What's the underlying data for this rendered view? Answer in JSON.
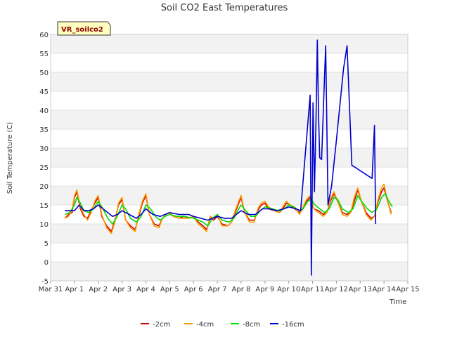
{
  "chart_data": {
    "type": "line",
    "title": "Soil CO2 East Temperatures",
    "xlabel": "Time",
    "ylabel": "Soil Temperature (C)",
    "badge": "VR_soilco2",
    "ylim": [
      -5,
      60
    ],
    "yticks": [
      -5,
      0,
      5,
      10,
      15,
      20,
      25,
      30,
      35,
      40,
      45,
      50,
      55,
      60
    ],
    "xlim": [
      0,
      15
    ],
    "xticks": [
      {
        "v": 0,
        "label": "Mar 31"
      },
      {
        "v": 1,
        "label": "Apr 1"
      },
      {
        "v": 2,
        "label": "Apr 2"
      },
      {
        "v": 3,
        "label": "Apr 3"
      },
      {
        "v": 4,
        "label": "Apr 4"
      },
      {
        "v": 5,
        "label": "Apr 5"
      },
      {
        "v": 6,
        "label": "Apr 6"
      },
      {
        "v": 7,
        "label": "Apr 7"
      },
      {
        "v": 8,
        "label": "Apr 8"
      },
      {
        "v": 9,
        "label": "Apr 9"
      },
      {
        "v": 10,
        "label": "Apr 10"
      },
      {
        "v": 11,
        "label": "Apr 11"
      },
      {
        "v": 12,
        "label": "Apr 12"
      },
      {
        "v": 13,
        "label": "Apr 13"
      },
      {
        "v": 14,
        "label": "Apr 14"
      },
      {
        "v": 15,
        "label": "Apr 15"
      }
    ],
    "grid": "horizontal bands",
    "legend_position": "bottom",
    "series": [
      {
        "name": "-2cm",
        "color": "#cc0000",
        "points": [
          [
            0.6,
            11.5
          ],
          [
            0.75,
            12.5
          ],
          [
            0.9,
            13
          ],
          [
            1.0,
            17
          ],
          [
            1.1,
            18.5
          ],
          [
            1.25,
            14
          ],
          [
            1.4,
            12
          ],
          [
            1.55,
            11.5
          ],
          [
            1.7,
            13.5
          ],
          [
            1.85,
            15.5
          ],
          [
            2.0,
            17
          ],
          [
            2.15,
            12
          ],
          [
            2.35,
            9.5
          ],
          [
            2.55,
            8
          ],
          [
            2.7,
            11
          ],
          [
            2.85,
            15
          ],
          [
            3.0,
            16.5
          ],
          [
            3.15,
            11
          ],
          [
            3.35,
            9.5
          ],
          [
            3.55,
            8.5
          ],
          [
            3.7,
            12
          ],
          [
            3.85,
            15.5
          ],
          [
            4.0,
            17.5
          ],
          [
            4.15,
            12.5
          ],
          [
            4.35,
            10
          ],
          [
            4.55,
            9.5
          ],
          [
            4.7,
            11.5
          ],
          [
            4.85,
            12.5
          ],
          [
            5.0,
            13
          ],
          [
            5.15,
            12
          ],
          [
            5.4,
            11.5
          ],
          [
            5.6,
            12
          ],
          [
            5.8,
            11.5
          ],
          [
            6.0,
            12
          ],
          [
            6.2,
            10.5
          ],
          [
            6.4,
            9.5
          ],
          [
            6.55,
            8.5
          ],
          [
            6.7,
            11.5
          ],
          [
            6.85,
            11
          ],
          [
            7.0,
            12
          ],
          [
            7.2,
            10
          ],
          [
            7.45,
            9.5
          ],
          [
            7.6,
            10.5
          ],
          [
            7.75,
            13
          ],
          [
            7.9,
            15.5
          ],
          [
            8.0,
            17
          ],
          [
            8.15,
            13
          ],
          [
            8.35,
            11
          ],
          [
            8.55,
            11
          ],
          [
            8.7,
            13.5
          ],
          [
            8.85,
            15
          ],
          [
            9.0,
            15.5
          ],
          [
            9.15,
            14
          ],
          [
            9.4,
            13.5
          ],
          [
            9.6,
            13
          ],
          [
            9.75,
            14
          ],
          [
            9.9,
            15.5
          ],
          [
            10.05,
            15
          ],
          [
            10.25,
            14
          ],
          [
            10.45,
            13
          ],
          [
            10.6,
            14
          ],
          [
            10.75,
            16
          ],
          [
            10.9,
            17
          ],
          [
            11.05,
            14
          ],
          [
            11.25,
            13.5
          ],
          [
            11.45,
            12.5
          ],
          [
            11.6,
            13
          ],
          [
            11.75,
            16
          ],
          [
            11.9,
            18
          ],
          [
            12.05,
            16
          ],
          [
            12.25,
            13
          ],
          [
            12.45,
            12.5
          ],
          [
            12.6,
            13
          ],
          [
            12.75,
            16
          ],
          [
            12.9,
            19
          ],
          [
            13.05,
            16
          ],
          [
            13.25,
            13
          ],
          [
            13.45,
            11.5
          ],
          [
            13.6,
            12
          ],
          [
            13.75,
            16
          ],
          [
            13.9,
            18.5
          ],
          [
            14.0,
            19.5
          ],
          [
            14.15,
            16
          ],
          [
            14.3,
            13
          ]
        ]
      },
      {
        "name": "-4cm",
        "color": "#ff9900",
        "points": [
          [
            0.6,
            11.5
          ],
          [
            0.75,
            12
          ],
          [
            0.9,
            13.5
          ],
          [
            1.0,
            17.5
          ],
          [
            1.1,
            19
          ],
          [
            1.25,
            14.5
          ],
          [
            1.4,
            12.5
          ],
          [
            1.55,
            11
          ],
          [
            1.7,
            13
          ],
          [
            1.85,
            16
          ],
          [
            2.0,
            17.5
          ],
          [
            2.15,
            12.5
          ],
          [
            2.35,
            9
          ],
          [
            2.55,
            7.5
          ],
          [
            2.7,
            10.5
          ],
          [
            2.85,
            15.5
          ],
          [
            3.0,
            17
          ],
          [
            3.15,
            11
          ],
          [
            3.35,
            9
          ],
          [
            3.55,
            8
          ],
          [
            3.7,
            12.5
          ],
          [
            3.85,
            16
          ],
          [
            4.0,
            18
          ],
          [
            4.15,
            12.5
          ],
          [
            4.35,
            9.5
          ],
          [
            4.55,
            9
          ],
          [
            4.7,
            11.5
          ],
          [
            4.85,
            12.5
          ],
          [
            5.0,
            13
          ],
          [
            5.15,
            12
          ],
          [
            5.4,
            11.5
          ],
          [
            5.6,
            11.5
          ],
          [
            5.8,
            11.5
          ],
          [
            6.0,
            12
          ],
          [
            6.2,
            10
          ],
          [
            6.4,
            9
          ],
          [
            6.55,
            8
          ],
          [
            6.7,
            12
          ],
          [
            6.85,
            11.5
          ],
          [
            7.0,
            12.5
          ],
          [
            7.2,
            9.5
          ],
          [
            7.45,
            9.5
          ],
          [
            7.6,
            10.5
          ],
          [
            7.75,
            13.5
          ],
          [
            7.9,
            16
          ],
          [
            8.0,
            17.5
          ],
          [
            8.15,
            13
          ],
          [
            8.35,
            10.5
          ],
          [
            8.55,
            10.5
          ],
          [
            8.7,
            14
          ],
          [
            8.85,
            15.5
          ],
          [
            9.0,
            16
          ],
          [
            9.15,
            14.5
          ],
          [
            9.4,
            13.5
          ],
          [
            9.6,
            13
          ],
          [
            9.75,
            14.5
          ],
          [
            9.9,
            16
          ],
          [
            10.05,
            15
          ],
          [
            10.25,
            14.5
          ],
          [
            10.45,
            12.5
          ],
          [
            10.6,
            14.5
          ],
          [
            10.75,
            16.5
          ],
          [
            10.9,
            17.5
          ],
          [
            11.05,
            14
          ],
          [
            11.25,
            13
          ],
          [
            11.45,
            12
          ],
          [
            11.6,
            13
          ],
          [
            11.75,
            16.5
          ],
          [
            11.9,
            18.5
          ],
          [
            12.05,
            16
          ],
          [
            12.25,
            12.5
          ],
          [
            12.45,
            12
          ],
          [
            12.6,
            13
          ],
          [
            12.75,
            17
          ],
          [
            12.9,
            19.5
          ],
          [
            13.05,
            16
          ],
          [
            13.25,
            12.5
          ],
          [
            13.45,
            11
          ],
          [
            13.6,
            12
          ],
          [
            13.75,
            16.5
          ],
          [
            13.9,
            19.5
          ],
          [
            14.0,
            20.5
          ],
          [
            14.15,
            16
          ],
          [
            14.3,
            12.5
          ]
        ]
      },
      {
        "name": "-8cm",
        "color": "#00dd00",
        "points": [
          [
            0.6,
            12.5
          ],
          [
            0.8,
            13
          ],
          [
            1.0,
            15
          ],
          [
            1.1,
            17
          ],
          [
            1.25,
            15.5
          ],
          [
            1.4,
            13.5
          ],
          [
            1.6,
            13
          ],
          [
            1.8,
            14
          ],
          [
            2.0,
            16
          ],
          [
            2.2,
            14
          ],
          [
            2.4,
            11.5
          ],
          [
            2.6,
            10
          ],
          [
            2.8,
            12
          ],
          [
            3.0,
            15
          ],
          [
            3.15,
            14
          ],
          [
            3.35,
            11.5
          ],
          [
            3.6,
            10.5
          ],
          [
            3.8,
            12
          ],
          [
            4.0,
            15
          ],
          [
            4.2,
            14
          ],
          [
            4.4,
            12
          ],
          [
            4.6,
            11
          ],
          [
            4.8,
            12
          ],
          [
            5.0,
            12.5
          ],
          [
            5.3,
            12
          ],
          [
            5.6,
            12
          ],
          [
            6.0,
            11.5
          ],
          [
            6.2,
            11
          ],
          [
            6.4,
            10.5
          ],
          [
            6.6,
            9.5
          ],
          [
            6.8,
            11.5
          ],
          [
            7.0,
            12.5
          ],
          [
            7.2,
            11
          ],
          [
            7.5,
            10.5
          ],
          [
            7.7,
            11.5
          ],
          [
            7.9,
            14
          ],
          [
            8.0,
            15
          ],
          [
            8.2,
            13.5
          ],
          [
            8.4,
            12
          ],
          [
            8.6,
            12
          ],
          [
            8.8,
            13.5
          ],
          [
            9.0,
            14.5
          ],
          [
            9.3,
            14
          ],
          [
            9.6,
            13.5
          ],
          [
            9.8,
            14
          ],
          [
            10.0,
            15
          ],
          [
            10.2,
            14.5
          ],
          [
            10.45,
            13.5
          ],
          [
            10.6,
            14
          ],
          [
            10.8,
            16
          ],
          [
            10.95,
            16.5
          ],
          [
            11.1,
            15
          ],
          [
            11.3,
            14
          ],
          [
            11.5,
            13
          ],
          [
            11.7,
            14
          ],
          [
            11.9,
            17
          ],
          [
            12.05,
            16.5
          ],
          [
            12.25,
            14
          ],
          [
            12.5,
            13
          ],
          [
            12.7,
            14
          ],
          [
            12.9,
            17.5
          ],
          [
            13.05,
            16
          ],
          [
            13.3,
            14
          ],
          [
            13.5,
            13
          ],
          [
            13.7,
            14
          ],
          [
            13.9,
            17
          ],
          [
            14.05,
            18
          ],
          [
            14.2,
            16
          ],
          [
            14.35,
            14.5
          ]
        ]
      },
      {
        "name": "-16cm",
        "color": "#0000cc",
        "points": [
          [
            0.6,
            13.5
          ],
          [
            1.0,
            13.5
          ],
          [
            1.2,
            15
          ],
          [
            1.4,
            13.5
          ],
          [
            1.6,
            13.5
          ],
          [
            1.8,
            14
          ],
          [
            2.0,
            15
          ],
          [
            2.3,
            13.5
          ],
          [
            2.6,
            12
          ],
          [
            2.8,
            12.5
          ],
          [
            3.0,
            13.5
          ],
          [
            3.3,
            12.5
          ],
          [
            3.6,
            11.5
          ],
          [
            3.8,
            12.5
          ],
          [
            4.0,
            14
          ],
          [
            4.3,
            12.5
          ],
          [
            4.6,
            12
          ],
          [
            4.8,
            12.5
          ],
          [
            5.0,
            13
          ],
          [
            5.4,
            12.5
          ],
          [
            5.8,
            12.5
          ],
          [
            6.0,
            12
          ],
          [
            6.3,
            11.5
          ],
          [
            6.6,
            11
          ],
          [
            6.8,
            11.5
          ],
          [
            7.0,
            12
          ],
          [
            7.3,
            11.5
          ],
          [
            7.6,
            11.5
          ],
          [
            7.9,
            13
          ],
          [
            8.0,
            13.5
          ],
          [
            8.3,
            12.5
          ],
          [
            8.6,
            12.5
          ],
          [
            8.9,
            14
          ],
          [
            9.2,
            14
          ],
          [
            9.5,
            13.5
          ],
          [
            9.8,
            14
          ],
          [
            10.0,
            14.5
          ],
          [
            10.3,
            14
          ],
          [
            10.5,
            13.5
          ],
          [
            10.9,
            44
          ],
          [
            10.95,
            -3.5
          ],
          [
            11.02,
            42
          ],
          [
            11.08,
            18.5
          ],
          [
            11.15,
            39
          ],
          [
            11.2,
            58.5
          ],
          [
            11.25,
            39
          ],
          [
            11.3,
            27.5
          ],
          [
            11.38,
            27
          ],
          [
            11.48,
            45
          ],
          [
            11.55,
            57
          ],
          [
            11.65,
            15
          ],
          [
            11.8,
            20
          ],
          [
            12.0,
            32
          ],
          [
            12.3,
            51
          ],
          [
            12.45,
            57
          ],
          [
            12.65,
            25.5
          ],
          [
            13.5,
            22
          ],
          [
            13.6,
            36
          ],
          [
            13.65,
            10
          ]
        ]
      }
    ]
  }
}
